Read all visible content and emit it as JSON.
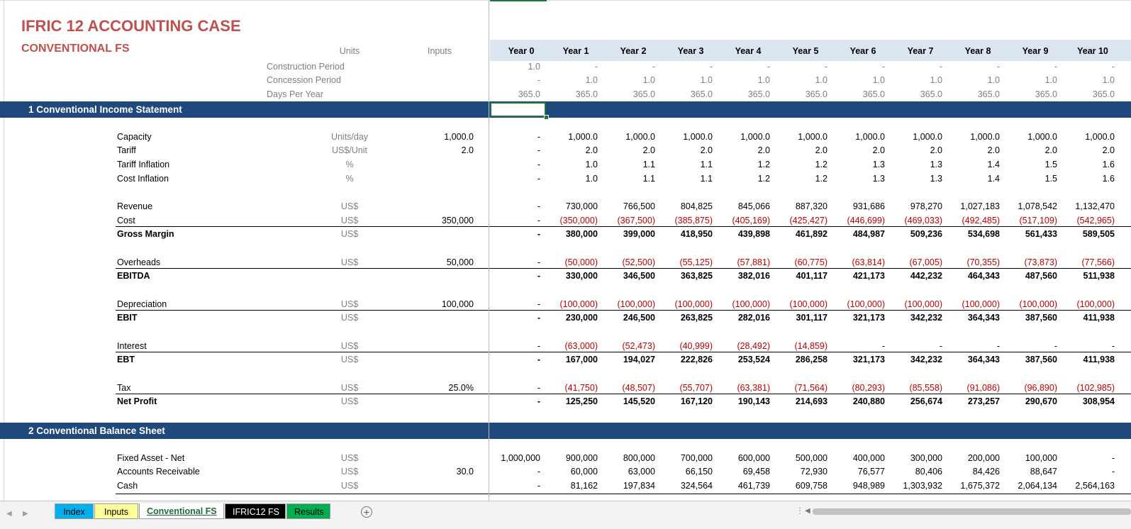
{
  "sheet": {
    "title": "IFRIC 12 ACCOUNTING CASE",
    "subtitle": "CONVENTIONAL FS",
    "header": {
      "units": "Units",
      "inputs": "Inputs"
    },
    "years": [
      "Year 0",
      "Year 1",
      "Year 2",
      "Year 3",
      "Year 4",
      "Year 5",
      "Year 6",
      "Year 7",
      "Year 8",
      "Year 9",
      "Year 10"
    ],
    "timing_rows": [
      {
        "label": "Construction Period",
        "values": [
          "1.0",
          "-",
          "-",
          "-",
          "-",
          "-",
          "-",
          "-",
          "-",
          "-",
          "-"
        ]
      },
      {
        "label": "Concession Period",
        "values": [
          "-",
          "1.0",
          "1.0",
          "1.0",
          "1.0",
          "1.0",
          "1.0",
          "1.0",
          "1.0",
          "1.0",
          "1.0"
        ]
      },
      {
        "label": "Days Per Year",
        "values": [
          "365.0",
          "365.0",
          "365.0",
          "365.0",
          "365.0",
          "365.0",
          "365.0",
          "365.0",
          "365.0",
          "365.0",
          "365.0"
        ]
      }
    ],
    "section1_title": "1  Conventional Income Statement",
    "section2_title": "2  Conventional Balance Sheet",
    "income_rows": [
      {
        "label": "Capacity",
        "unit": "Units/day",
        "input": "1,000.0",
        "values": [
          "-",
          "1,000.0",
          "1,000.0",
          "1,000.0",
          "1,000.0",
          "1,000.0",
          "1,000.0",
          "1,000.0",
          "1,000.0",
          "1,000.0",
          "1,000.0"
        ]
      },
      {
        "label": "Tariff",
        "unit": "US$/Unit",
        "input": "2.0",
        "values": [
          "-",
          "2.0",
          "2.0",
          "2.0",
          "2.0",
          "2.0",
          "2.0",
          "2.0",
          "2.0",
          "2.0",
          "2.0"
        ]
      },
      {
        "label": "Tariff Inflation",
        "unit": "%",
        "input": "",
        "values": [
          "-",
          "1.0",
          "1.1",
          "1.1",
          "1.2",
          "1.2",
          "1.3",
          "1.3",
          "1.4",
          "1.5",
          "1.6"
        ]
      },
      {
        "label": "Cost Inflation",
        "unit": "%",
        "input": "",
        "values": [
          "-",
          "1.0",
          "1.1",
          "1.1",
          "1.2",
          "1.2",
          "1.3",
          "1.3",
          "1.4",
          "1.5",
          "1.6"
        ]
      },
      {
        "label": "Revenue",
        "unit": "US$",
        "input": "",
        "values": [
          "-",
          "730,000",
          "766,500",
          "804,825",
          "845,066",
          "887,320",
          "931,686",
          "978,270",
          "1,027,183",
          "1,078,542",
          "1,132,470"
        ]
      },
      {
        "label": "Cost",
        "unit": "US$",
        "input": "350,000",
        "values": [
          "-",
          "(350,000)",
          "(367,500)",
          "(385,875)",
          "(405,169)",
          "(425,427)",
          "(446,699)",
          "(469,033)",
          "(492,485)",
          "(517,109)",
          "(542,965)"
        ]
      },
      {
        "label": "Gross Margin",
        "unit": "US$",
        "input": "",
        "bold": true,
        "values": [
          "-",
          "380,000",
          "399,000",
          "418,950",
          "439,898",
          "461,892",
          "484,987",
          "509,236",
          "534,698",
          "561,433",
          "589,505"
        ]
      },
      {
        "label": "Overheads",
        "unit": "US$",
        "input": "50,000",
        "values": [
          "-",
          "(50,000)",
          "(52,500)",
          "(55,125)",
          "(57,881)",
          "(60,775)",
          "(63,814)",
          "(67,005)",
          "(70,355)",
          "(73,873)",
          "(77,566)"
        ]
      },
      {
        "label": "EBITDA",
        "unit": "",
        "input": "",
        "bold": true,
        "values": [
          "-",
          "330,000",
          "346,500",
          "363,825",
          "382,016",
          "401,117",
          "421,173",
          "442,232",
          "464,343",
          "487,560",
          "511,938"
        ]
      },
      {
        "label": "Depreciation",
        "unit": "US$",
        "input": "100,000",
        "values": [
          "-",
          "(100,000)",
          "(100,000)",
          "(100,000)",
          "(100,000)",
          "(100,000)",
          "(100,000)",
          "(100,000)",
          "(100,000)",
          "(100,000)",
          "(100,000)"
        ]
      },
      {
        "label": "EBIT",
        "unit": "US$",
        "input": "",
        "bold": true,
        "values": [
          "-",
          "230,000",
          "246,500",
          "263,825",
          "282,016",
          "301,117",
          "321,173",
          "342,232",
          "364,343",
          "387,560",
          "411,938"
        ]
      },
      {
        "label": "Interest",
        "unit": "US$",
        "input": "",
        "values": [
          "-",
          "(63,000)",
          "(52,473)",
          "(40,999)",
          "(28,492)",
          "(14,859)",
          "-",
          "-",
          "-",
          "-",
          "-"
        ]
      },
      {
        "label": "EBT",
        "unit": "US$",
        "input": "",
        "bold": true,
        "values": [
          "-",
          "167,000",
          "194,027",
          "222,826",
          "253,524",
          "286,258",
          "321,173",
          "342,232",
          "364,343",
          "387,560",
          "411,938"
        ]
      },
      {
        "label": "Tax",
        "unit": "US$",
        "input": "25.0%",
        "values": [
          "-",
          "(41,750)",
          "(48,507)",
          "(55,707)",
          "(63,381)",
          "(71,564)",
          "(80,293)",
          "(85,558)",
          "(91,086)",
          "(96,890)",
          "(102,985)"
        ]
      },
      {
        "label": "Net Profit",
        "unit": "US$",
        "input": "",
        "bold": true,
        "values": [
          "-",
          "125,250",
          "145,520",
          "167,120",
          "190,143",
          "214,693",
          "240,880",
          "256,674",
          "273,257",
          "290,670",
          "308,954"
        ]
      }
    ],
    "balance_rows": [
      {
        "label": "Fixed Asset - Net",
        "unit": "US$",
        "input": "",
        "values": [
          "1,000,000",
          "900,000",
          "800,000",
          "700,000",
          "600,000",
          "500,000",
          "400,000",
          "300,000",
          "200,000",
          "100,000",
          "-"
        ]
      },
      {
        "label": "Accounts Receivable",
        "unit": "US$",
        "input": "30.0",
        "values": [
          "-",
          "60,000",
          "63,000",
          "66,150",
          "69,458",
          "72,930",
          "76,577",
          "80,406",
          "84,426",
          "88,647",
          "-"
        ]
      },
      {
        "label": "Cash",
        "unit": "US$",
        "input": "",
        "values": [
          "-",
          "81,162",
          "197,834",
          "324,564",
          "461,739",
          "609,758",
          "948,989",
          "1,303,932",
          "1,675,372",
          "2,064,134",
          "2,564,163"
        ]
      }
    ]
  },
  "tabs": [
    {
      "label": "Index",
      "color": "#00b0f0",
      "text_color": "#000000"
    },
    {
      "label": "Inputs",
      "color": "#ffff99",
      "text_color": "#000000"
    },
    {
      "label": "Conventional FS",
      "color": "#ffffff",
      "text_color": "#1e6b3c",
      "active": true
    },
    {
      "label": "IFRIC12 FS",
      "color": "#000000",
      "text_color": "#ffffff"
    },
    {
      "label": "Results",
      "color": "#00b050",
      "text_color": "#000000"
    }
  ],
  "icons": {
    "add_sheet": "plus-circle-icon",
    "prev_sheet": "triangle-left-icon",
    "next_sheet": "triangle-right-icon"
  },
  "colors": {
    "title": "#c0504d",
    "section_bar": "#1f497d",
    "header_strip": "#dce6f1",
    "negative": "#c00000",
    "active_cell": "#217346"
  }
}
